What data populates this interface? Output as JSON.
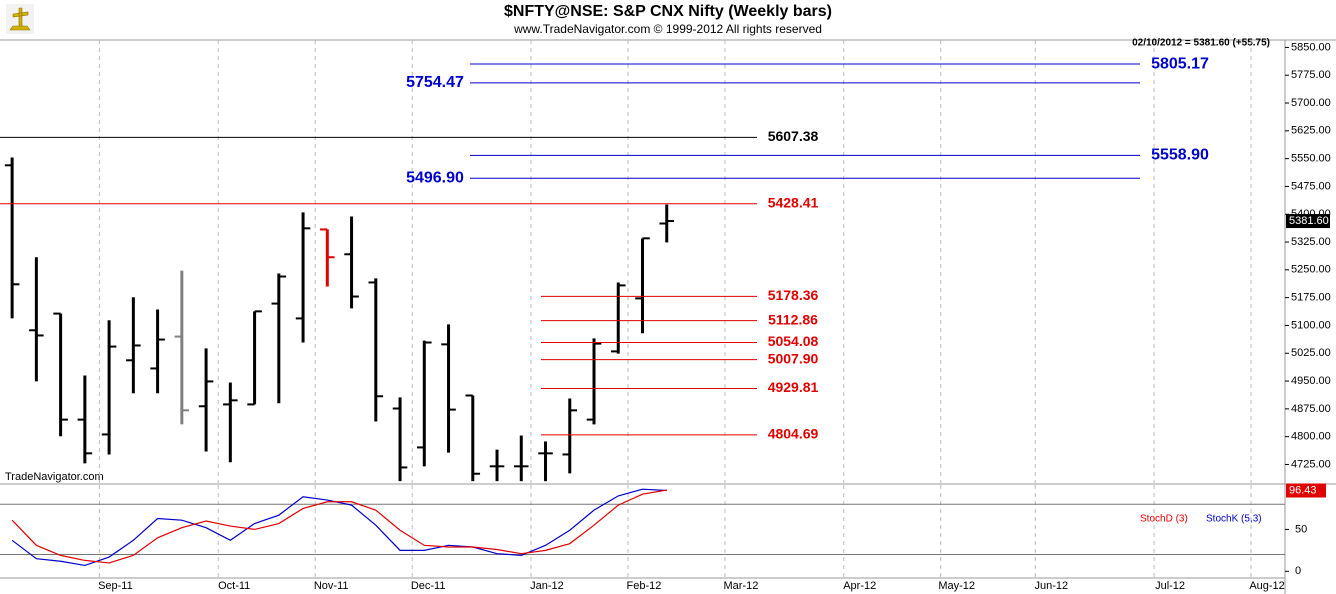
{
  "title": "$NFTY@NSE:  S&P CNX Nifty  (Weekly bars)",
  "subtitle": "www.TradeNavigator.com © 1999-2012 All rights reserved",
  "watermark": "TradeNavigator.com",
  "quote": "02/10/2012 = 5381.60 (+55.75)",
  "chart_data": [
    {
      "type": "ohlc",
      "xlim": [
        -0.5,
        52.5
      ],
      "ylim": [
        4675,
        5870
      ],
      "yticks": [
        {
          "value": 4725,
          "label": "4725.00"
        },
        {
          "value": 4800,
          "label": "4800.00"
        },
        {
          "value": 4875,
          "label": "4875.00"
        },
        {
          "value": 4950,
          "label": "4950.00"
        },
        {
          "value": 5025,
          "label": "5025.00"
        },
        {
          "value": 5100,
          "label": "5100.00"
        },
        {
          "value": 5175,
          "label": "5175.00"
        },
        {
          "value": 5250,
          "label": "5250.00"
        },
        {
          "value": 5325,
          "label": "5325.00"
        },
        {
          "value": 5400,
          "label": "5400.00"
        },
        {
          "value": 5475,
          "label": "5475.00"
        },
        {
          "value": 5550,
          "label": "5550.00"
        },
        {
          "value": 5625,
          "label": "5625.00"
        },
        {
          "value": 5700,
          "label": "5700.00"
        },
        {
          "value": 5775,
          "label": "5775.00"
        },
        {
          "value": 5850,
          "label": "5850.00"
        }
      ],
      "open": [
        5532,
        5087,
        5132,
        4846,
        4806,
        5006,
        4984,
        5070,
        4882,
        4887,
        4887,
        5159,
        5119,
        5359,
        5292,
        5216,
        4876,
        4771,
        5049,
        4911,
        4720,
        4720,
        4755,
        4752,
        4846,
        5030,
        5173,
        5375
      ],
      "high": [
        5553,
        5284,
        5132,
        4965,
        5114,
        5176,
        5143,
        5248,
        5038,
        4946,
        5138,
        5240,
        5405,
        5359,
        5394,
        5227,
        4906,
        5059,
        5103,
        4911,
        4765,
        4803,
        4787,
        4903,
        5065,
        5216,
        5335,
        5426
      ],
      "low": [
        5119,
        4949,
        4801,
        4728,
        4752,
        4917,
        4917,
        4833,
        4760,
        4731,
        4887,
        4890,
        5054,
        5205,
        5146,
        4841,
        4680,
        4720,
        4757,
        4680,
        4680,
        4680,
        4680,
        4701,
        4833,
        5024,
        5079,
        5324
      ],
      "close": [
        5211,
        5073,
        4846,
        4755,
        5043,
        5046,
        5062,
        4871,
        4949,
        4898,
        5138,
        5232,
        5362,
        5284,
        5178,
        4909,
        4717,
        5054,
        4873,
        4700,
        4720,
        4720,
        4755,
        4871,
        5051,
        5208,
        5335,
        5381.6
      ],
      "colors": [
        "#000000",
        "#000000",
        "#000000",
        "#000000",
        "#000000",
        "#000000",
        "#000000",
        "#808080",
        "#000000",
        "#000000",
        "#000000",
        "#000000",
        "#000000",
        "#e00000",
        "#000000",
        "#000000",
        "#000000",
        "#000000",
        "#000000",
        "#000000",
        "#000000",
        "#000000",
        "#000000",
        "#000000",
        "#000000",
        "#000000",
        "#000000",
        "#000000"
      ],
      "last_price": {
        "value": 5381.6,
        "label": "5381.60"
      },
      "level_groups": [
        {
          "color": "#000000",
          "values": [
            5607.38
          ],
          "value_labels": [
            "5607.38"
          ]
        },
        {
          "color": "#e00000",
          "values": [
            5428.41
          ],
          "value_labels": [
            "5428.41"
          ]
        },
        {
          "color": "#0000cc",
          "values": [
            5805.17,
            5754.47,
            5558.9,
            5496.9
          ],
          "value_labels": [
            "5805.17",
            "5754.47",
            "5558.90",
            "5496.90"
          ]
        },
        {
          "color": "#e00000",
          "values": [
            5178.36,
            5112.86,
            5054.08,
            5007.9,
            4929.81,
            4804.69
          ],
          "value_labels": [
            "5178.36",
            "5112.86",
            "5054.08",
            "5007.90",
            "4929.81",
            "4804.69"
          ]
        }
      ]
    },
    {
      "type": "line",
      "xlim": [
        -0.5,
        52.5
      ],
      "ylim": [
        -8,
        103
      ],
      "yticks": [
        0,
        50
      ],
      "levels": [
        20,
        80
      ],
      "xticks": [
        {
          "value": 3.6,
          "label": "Sep-11"
        },
        {
          "value": 8.5,
          "label": "Oct-11"
        },
        {
          "value": 12.5,
          "label": "Nov-11"
        },
        {
          "value": 16.5,
          "label": "Dec-11"
        },
        {
          "value": 21.4,
          "label": "Jan-12"
        },
        {
          "value": 25.4,
          "label": "Feb-12"
        },
        {
          "value": 29.4,
          "label": "Mar-12"
        },
        {
          "value": 34.3,
          "label": "Apr-12"
        },
        {
          "value": 38.3,
          "label": "May-12"
        },
        {
          "value": 42.2,
          "label": "Jun-12"
        },
        {
          "value": 47.1,
          "label": "Jul-12"
        },
        {
          "value": 51.1,
          "label": "Aug-12"
        }
      ],
      "series": [
        {
          "name": "StochK (5,3)",
          "color": "#0000cc",
          "values": [
            37,
            15,
            12,
            7,
            17,
            37,
            63,
            61,
            52,
            37,
            57,
            67,
            89,
            85,
            79,
            55,
            25,
            25,
            31,
            29,
            21,
            19,
            31,
            49,
            73,
            90,
            98,
            96.43
          ]
        },
        {
          "name": "StochD (3)",
          "color": "#e00000",
          "values": [
            61,
            31,
            19,
            13,
            10,
            19,
            40,
            52,
            60,
            54,
            50,
            57,
            75,
            83,
            83,
            73,
            49,
            31,
            29,
            29,
            26,
            21,
            25,
            33,
            55,
            79,
            92,
            97
          ]
        }
      ]
    }
  ]
}
